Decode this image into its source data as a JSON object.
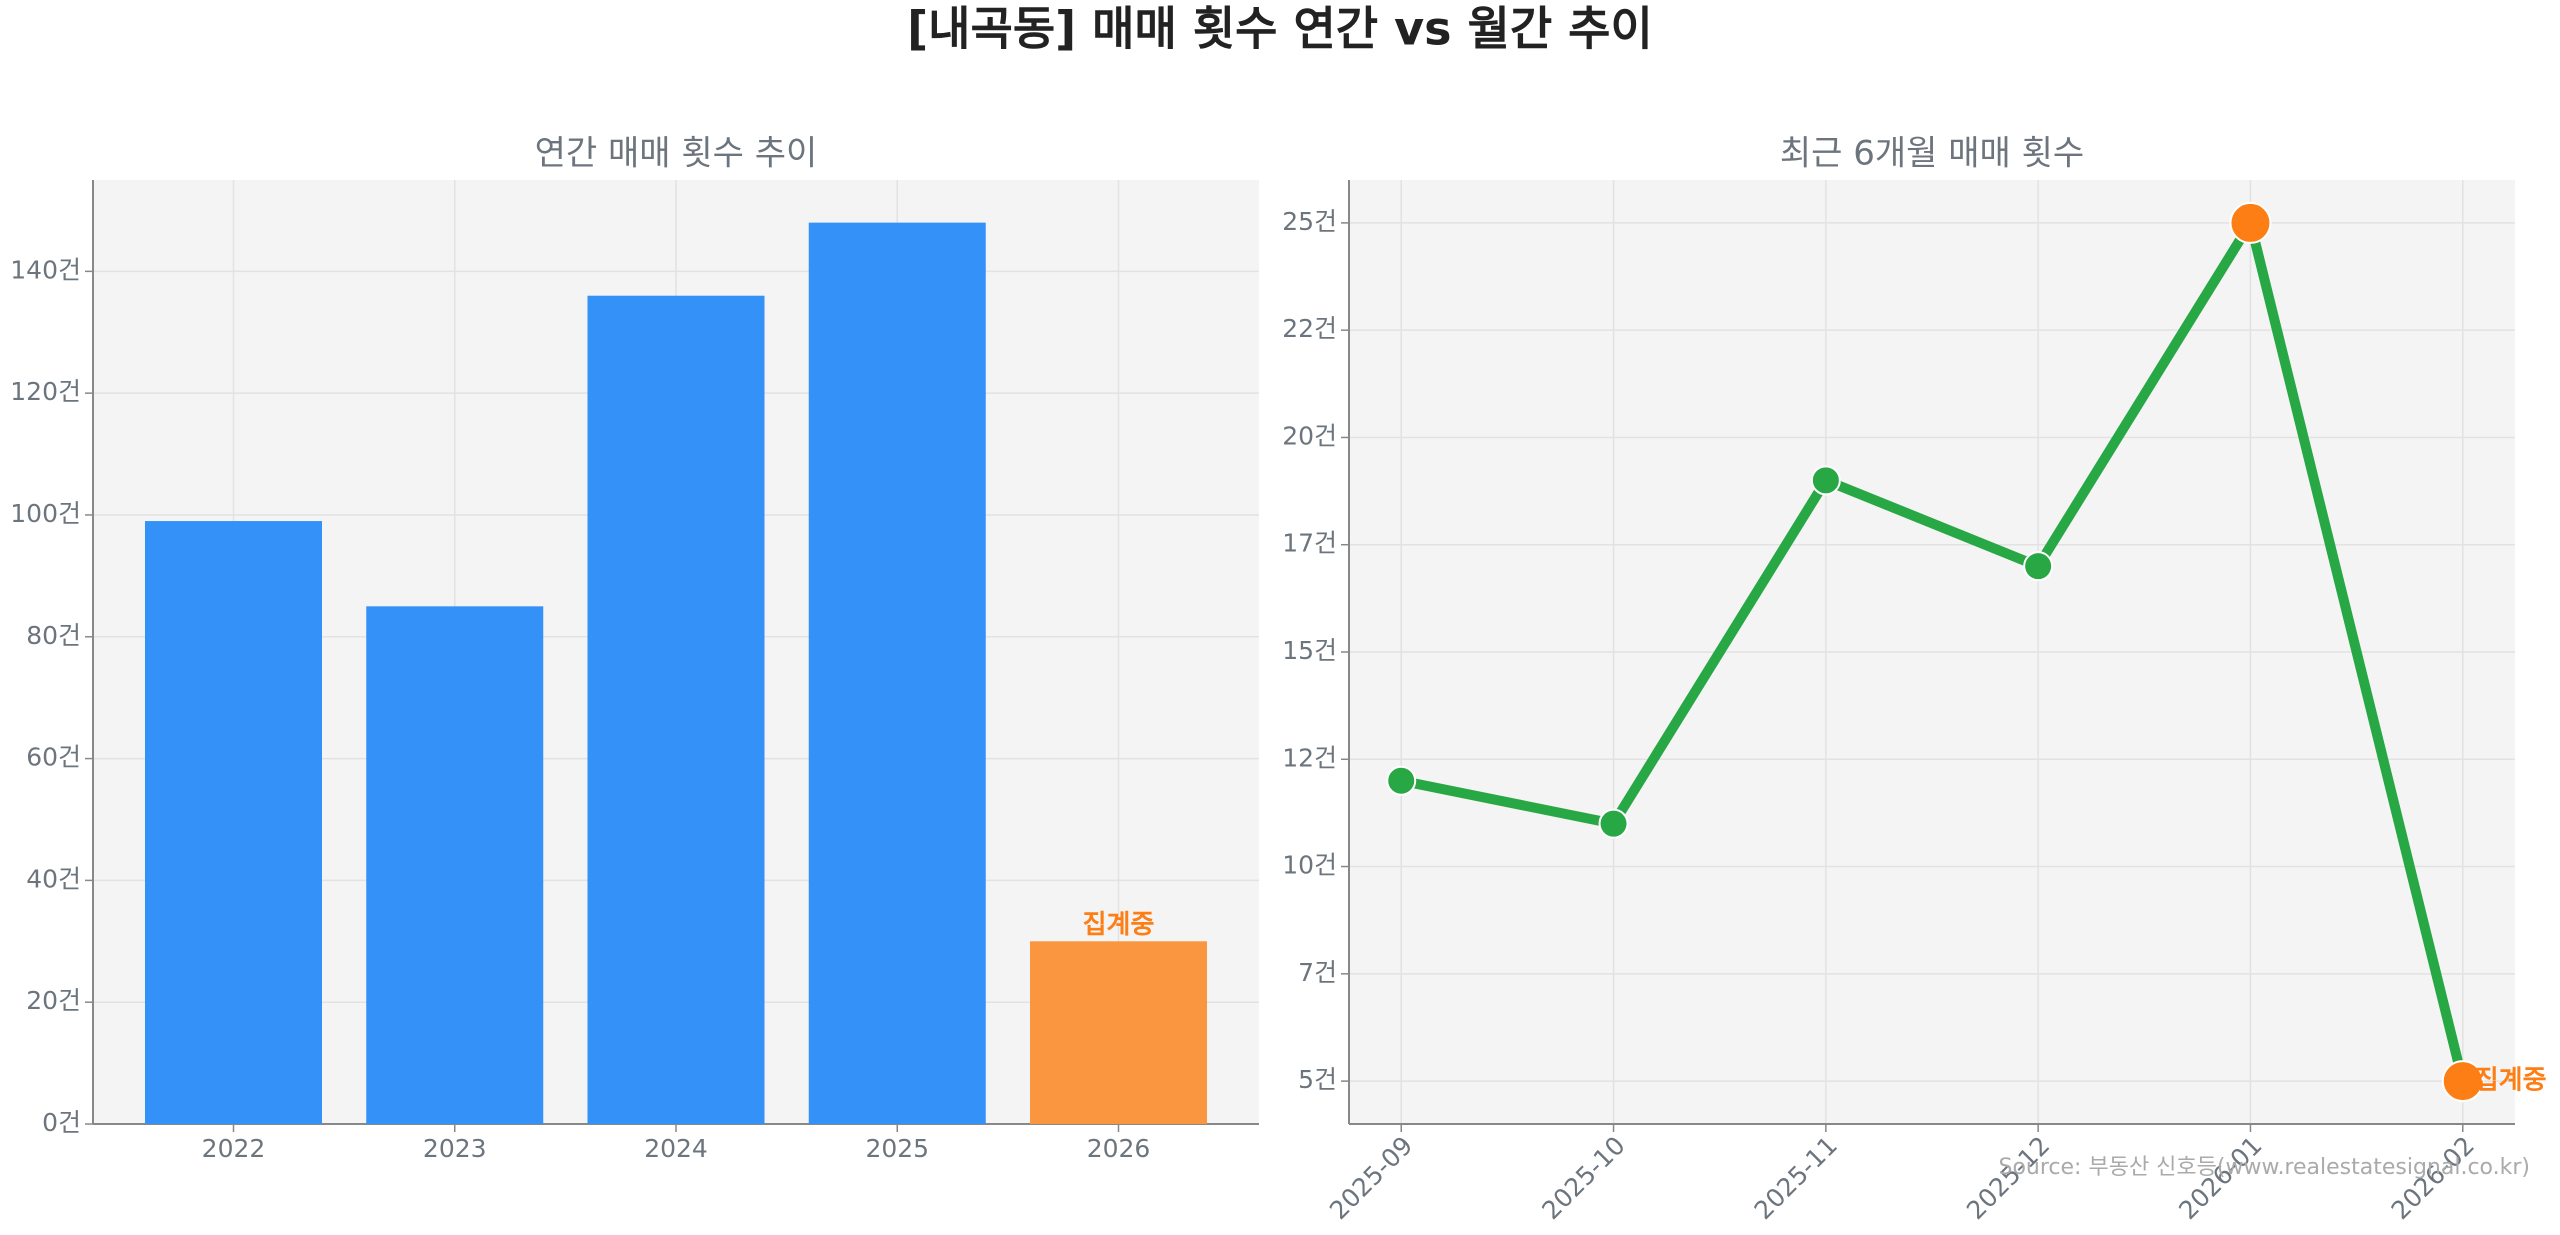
{
  "title": "[내곡동] 매매 횟수 연간 vs 월간 추이",
  "source": "Source: 부동산 신호등(www.realestatesignal.co.kr)",
  "chart_data": [
    {
      "type": "bar",
      "title": "연간 매매 횟수 추이",
      "categories": [
        "2022",
        "2023",
        "2024",
        "2025",
        "2026"
      ],
      "values": [
        99,
        85,
        136,
        148,
        30
      ],
      "colors": [
        "#3391f8",
        "#3391f8",
        "#3391f8",
        "#3391f8",
        "#f9963f"
      ],
      "ylim": [
        0,
        155
      ],
      "yticks": [
        {
          "value": 0,
          "label": "0건"
        },
        {
          "value": 20,
          "label": "20건"
        },
        {
          "value": 40,
          "label": "40건"
        },
        {
          "value": 60,
          "label": "60건"
        },
        {
          "value": 80,
          "label": "80건"
        },
        {
          "value": 100,
          "label": "100건"
        },
        {
          "value": 120,
          "label": "120건"
        },
        {
          "value": 140,
          "label": "140건"
        }
      ],
      "grid": true,
      "annotations": [
        {
          "text": "집계중",
          "category": "2026",
          "color": "#fd7e14"
        }
      ]
    },
    {
      "type": "line",
      "title": "최근 6개월 매매 횟수",
      "categories": [
        "2025-09",
        "2025-10",
        "2025-11",
        "2025-12",
        "2026-01",
        "2026-02"
      ],
      "values": [
        12,
        11,
        19,
        17,
        25,
        5
      ],
      "color": "#28a745",
      "marker_colors": [
        "#28a745",
        "#28a745",
        "#28a745",
        "#28a745",
        "#fd7e14",
        "#fd7e14"
      ],
      "ylim": [
        4,
        26
      ],
      "yticks": [
        {
          "value": 5,
          "label": "5건"
        },
        {
          "value": 7.5,
          "label": "7건"
        },
        {
          "value": 10,
          "label": "10건"
        },
        {
          "value": 12.5,
          "label": "12건"
        },
        {
          "value": 15,
          "label": "15건"
        },
        {
          "value": 17.5,
          "label": "17건"
        },
        {
          "value": 20,
          "label": "20건"
        },
        {
          "value": 22.5,
          "label": "22건"
        },
        {
          "value": 25,
          "label": "25건"
        }
      ],
      "grid": true,
      "annotations": [
        {
          "text": "집계중",
          "category": "2026-02",
          "color": "#fd7e14"
        }
      ]
    }
  ]
}
